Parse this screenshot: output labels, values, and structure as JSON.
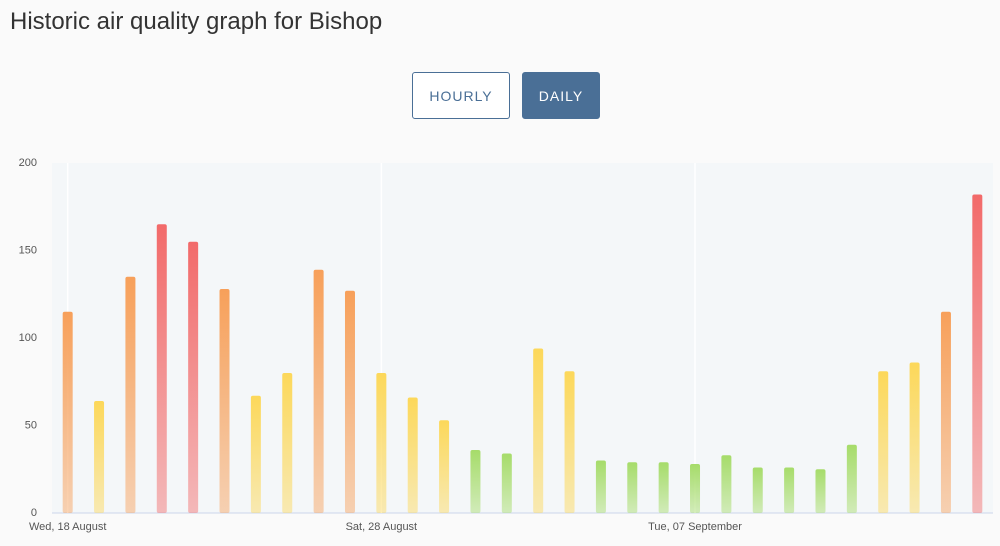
{
  "header": {
    "title": "Historic air quality graph for Bishop"
  },
  "controls": {
    "buttons": [
      "HOURLY",
      "DAILY"
    ],
    "active": 1
  },
  "chart_data": {
    "type": "bar",
    "categories": [
      "Wed, 18 August",
      null,
      null,
      null,
      null,
      null,
      null,
      null,
      null,
      null,
      "Sat, 28 August",
      null,
      null,
      null,
      null,
      null,
      null,
      null,
      null,
      null,
      "Tue, 07 September",
      null,
      null,
      null,
      null,
      null,
      null,
      null,
      null,
      null
    ],
    "values": [
      115,
      64,
      135,
      165,
      155,
      128,
      67,
      80,
      139,
      127,
      80,
      66,
      53,
      36,
      34,
      94,
      81,
      30,
      29,
      29,
      28,
      33,
      26,
      26,
      25,
      39,
      81,
      86,
      115,
      182
    ],
    "colors": [
      "#f7a05a",
      "#fcd85a",
      "#f7a05a",
      "#f26a6a",
      "#f26a6a",
      "#f7a05a",
      "#fcd85a",
      "#fcd85a",
      "#f7a05a",
      "#f7a05a",
      "#fcd85a",
      "#fcd85a",
      "#fcd85a",
      "#a6dc6a",
      "#a6dc6a",
      "#fcd85a",
      "#fcd85a",
      "#a6dc6a",
      "#a6dc6a",
      "#a6dc6a",
      "#a6dc6a",
      "#a6dc6a",
      "#a6dc6a",
      "#a6dc6a",
      "#a6dc6a",
      "#a6dc6a",
      "#fcd85a",
      "#fcd85a",
      "#f7a05a",
      "#f26a6a"
    ],
    "ylim": [
      0,
      200
    ],
    "yticks": [
      0,
      50,
      100,
      150,
      200
    ],
    "grid": false
  }
}
